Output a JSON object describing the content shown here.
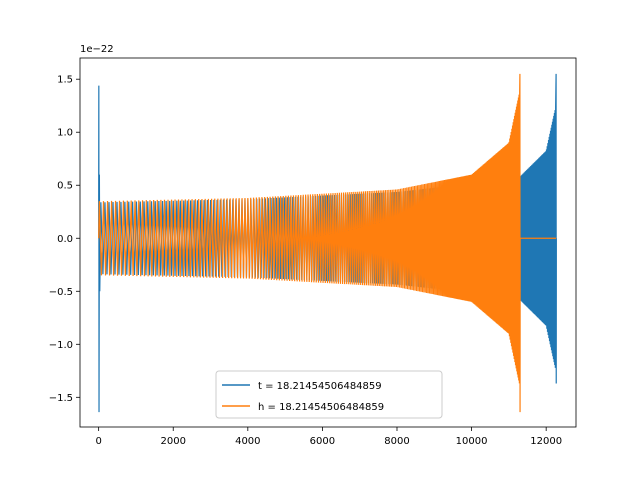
{
  "chart_data": {
    "type": "line",
    "title": "",
    "xlabel": "",
    "ylabel": "",
    "offset_text": "1e−22",
    "xlim": [
      -500,
      12800
    ],
    "ylim": [
      -1.78,
      1.7
    ],
    "x_ticks": [
      0,
      2000,
      4000,
      6000,
      8000,
      10000,
      12000
    ],
    "x_tick_labels": [
      "0",
      "2000",
      "4000",
      "6000",
      "8000",
      "10000",
      "12000"
    ],
    "y_ticks": [
      -1.5,
      -1.0,
      -0.5,
      0.0,
      0.5,
      1.0,
      1.5
    ],
    "y_tick_labels": [
      "−1.5",
      "−1.0",
      "−0.5",
      "0.0",
      "0.5",
      "1.0",
      "1.5"
    ],
    "grid": false,
    "legend_position": "lower center",
    "series": [
      {
        "name": "t = 18.21454506484859",
        "color": "#1f77b4",
        "description": "chirp oscillation; initial spike at x≈0 reaching 1.44 and -1.64; envelope grows from ±0.35 to peak +1.55/-1.37 near x≈12270",
        "x_start": 0,
        "x_end": 12270,
        "initial_spike": {
          "x": 0,
          "max": 1.44,
          "min": -1.64
        },
        "envelope": [
          {
            "x": 100,
            "amp": 0.35
          },
          {
            "x": 4000,
            "amp": 0.38
          },
          {
            "x": 8000,
            "amp": 0.45
          },
          {
            "x": 10000,
            "amp": 0.53
          },
          {
            "x": 11300,
            "amp": 0.6
          },
          {
            "x": 12000,
            "amp": 0.85
          },
          {
            "x": 12270,
            "amp": 1.3
          }
        ],
        "final_peak": {
          "x": 12270,
          "max": 1.55,
          "min": -1.37
        }
      },
      {
        "name": "h = 18.21454506484859",
        "color": "#ff7f0e",
        "description": "chirp oscillation; envelope grows from ±0.35 to peak +1.55/-1.64 near x≈11300, then flat at 0 until x≈12270",
        "x_start": 0,
        "x_end": 11300,
        "envelope": [
          {
            "x": 100,
            "amp": 0.35
          },
          {
            "x": 4000,
            "amp": 0.38
          },
          {
            "x": 8000,
            "amp": 0.46
          },
          {
            "x": 10000,
            "amp": 0.6
          },
          {
            "x": 11000,
            "amp": 0.9
          },
          {
            "x": 11300,
            "amp": 1.4
          }
        ],
        "final_peak": {
          "x": 11300,
          "max": 1.55,
          "min": -1.64
        },
        "flat_segment": {
          "x_from": 11300,
          "x_to": 12270,
          "y": 0
        }
      }
    ]
  }
}
